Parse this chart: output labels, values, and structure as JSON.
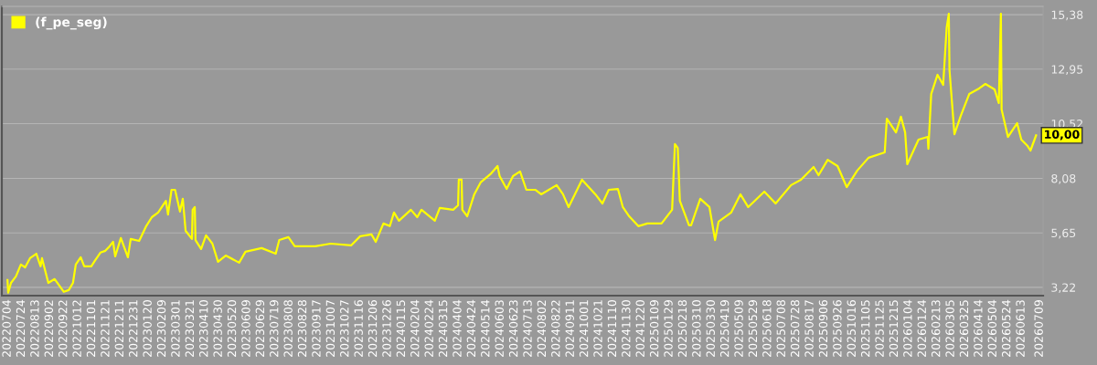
{
  "chart_data": {
    "type": "line",
    "x": [
      "2022-07-04",
      "2022-07-05",
      "2022-07-09",
      "2022-07-16",
      "2022-07-23",
      "2022-07-29",
      "2022-08-05",
      "2022-08-14",
      "2022-08-20",
      "2022-08-22",
      "2022-08-31",
      "2022-09-09",
      "2022-09-22",
      "2022-09-29",
      "2022-10-05",
      "2022-10-09",
      "2022-10-16",
      "2022-10-21",
      "2022-10-31",
      "2022-11-05",
      "2022-11-13",
      "2022-11-20",
      "2022-11-26",
      "2022-12-01",
      "2022-12-04",
      "2022-12-12",
      "2022-12-22",
      "2022-12-26",
      "2023-01-07",
      "2023-01-17",
      "2023-01-25",
      "2023-02-03",
      "2023-02-14",
      "2023-02-17",
      "2023-02-22",
      "2023-02-27",
      "2023-03-06",
      "2023-03-10",
      "2023-03-14",
      "2023-03-23",
      "2023-03-24",
      "2023-03-27",
      "2023-03-28",
      "2023-04-05",
      "2023-04-12",
      "2023-04-21",
      "2023-04-29",
      "2023-05-10",
      "2023-05-29",
      "2023-06-07",
      "2023-06-30",
      "2023-07-20",
      "2023-07-25",
      "2023-08-07",
      "2023-08-16",
      "2023-09-14",
      "2023-10-06",
      "2023-11-04",
      "2023-11-17",
      "2023-12-03",
      "2023-12-09",
      "2023-12-20",
      "2023-12-29",
      "2024-01-04",
      "2024-01-11",
      "2024-01-28",
      "2024-02-06",
      "2024-02-12",
      "2024-03-02",
      "2024-03-09",
      "2024-03-28",
      "2024-04-04",
      "2024-04-05",
      "2024-04-09",
      "2024-04-10",
      "2024-04-17",
      "2024-04-27",
      "2024-05-06",
      "2024-05-21",
      "2024-05-30",
      "2024-06-02",
      "2024-06-12",
      "2024-06-21",
      "2024-07-01",
      "2024-07-10",
      "2024-07-23",
      "2024-07-31",
      "2024-08-22",
      "2024-08-31",
      "2024-09-08",
      "2024-09-27",
      "2024-10-16",
      "2024-10-26",
      "2024-11-04",
      "2024-11-17",
      "2024-11-24",
      "2024-12-03",
      "2024-12-16",
      "2024-12-29",
      "2025-01-18",
      "2025-02-02",
      "2025-02-06",
      "2025-02-10",
      "2025-02-13",
      "2025-02-26",
      "2025-03-01",
      "2025-03-14",
      "2025-03-27",
      "2025-04-04",
      "2025-04-09",
      "2025-04-27",
      "2025-05-10",
      "2025-05-21",
      "2025-06-13",
      "2025-06-29",
      "2025-07-21",
      "2025-08-04",
      "2025-08-22",
      "2025-08-29",
      "2025-09-11",
      "2025-09-25",
      "2025-10-08",
      "2025-10-23",
      "2025-11-08",
      "2025-12-01",
      "2025-12-04",
      "2025-12-17",
      "2025-12-24",
      "2025-12-30",
      "2026-01-02",
      "2026-01-18",
      "2026-01-31",
      "2026-02-01",
      "2026-02-05",
      "2026-02-14",
      "2026-02-22",
      "2026-02-27",
      "2026-03-02",
      "2026-03-03",
      "2026-03-10",
      "2026-03-19",
      "2026-03-31",
      "2026-04-14",
      "2026-04-23",
      "2026-05-06",
      "2026-05-12",
      "2026-05-15",
      "2026-05-16",
      "2026-05-25",
      "2026-06-07",
      "2026-06-13",
      "2026-06-22",
      "2026-06-26",
      "2026-07-04"
    ],
    "series": [
      {
        "name": "(f_pe_seg)",
        "color": "#ffff00",
        "values": [
          3.55,
          2.98,
          3.42,
          3.71,
          4.24,
          4.11,
          4.52,
          4.72,
          4.16,
          4.52,
          3.42,
          3.59,
          3.02,
          3.1,
          3.42,
          4.24,
          4.56,
          4.16,
          4.16,
          4.4,
          4.77,
          4.85,
          5.05,
          5.25,
          4.6,
          5.42,
          4.56,
          5.38,
          5.29,
          5.95,
          6.35,
          6.56,
          7.08,
          6.47,
          7.57,
          7.57,
          6.6,
          7.17,
          5.74,
          5.38,
          6.68,
          6.8,
          5.33,
          4.93,
          5.54,
          5.17,
          4.36,
          4.64,
          4.32,
          4.81,
          4.97,
          4.72,
          5.33,
          5.46,
          5.05,
          5.05,
          5.17,
          5.09,
          5.5,
          5.58,
          5.25,
          6.07,
          5.95,
          6.56,
          6.19,
          6.68,
          6.35,
          6.68,
          6.19,
          6.76,
          6.68,
          6.88,
          8.02,
          8.02,
          6.68,
          6.39,
          7.37,
          7.9,
          8.3,
          8.63,
          8.18,
          7.61,
          8.18,
          8.39,
          7.57,
          7.57,
          7.37,
          7.78,
          7.37,
          6.8,
          8.02,
          7.37,
          6.96,
          7.57,
          7.61,
          6.8,
          6.39,
          5.95,
          6.07,
          6.07,
          6.68,
          9.61,
          9.44,
          7.08,
          5.99,
          5.99,
          7.17,
          6.8,
          5.33,
          6.15,
          6.56,
          7.37,
          6.8,
          7.49,
          6.96,
          7.78,
          8.02,
          8.59,
          8.22,
          8.91,
          8.63,
          7.69,
          8.43,
          9.0,
          9.24,
          10.74,
          10.13,
          10.83,
          10.13,
          8.71,
          9.81,
          9.93,
          9.4,
          11.84,
          12.7,
          12.25,
          14.81,
          15.42,
          12.9,
          10.05,
          10.87,
          11.84,
          12.09,
          12.29,
          12.05,
          11.44,
          15.42,
          11.15,
          9.93,
          10.54,
          9.81,
          9.52,
          9.32,
          10.0
        ]
      }
    ],
    "xlim": [
      "2022-06-26",
      "2026-07-14"
    ],
    "xticks": [
      {
        "value": "2022-07-04",
        "label": "20220704"
      },
      {
        "value": "2022-07-24",
        "label": "20220724"
      },
      {
        "value": "2022-08-13",
        "label": "20220813"
      },
      {
        "value": "2022-09-02",
        "label": "20220902"
      },
      {
        "value": "2022-09-22",
        "label": "20220922"
      },
      {
        "value": "2022-10-12",
        "label": "20221012"
      },
      {
        "value": "2022-11-01",
        "label": "20221101"
      },
      {
        "value": "2022-11-21",
        "label": "20221121"
      },
      {
        "value": "2022-12-11",
        "label": "20221211"
      },
      {
        "value": "2022-12-31",
        "label": "20221231"
      },
      {
        "value": "2023-01-20",
        "label": "20230120"
      },
      {
        "value": "2023-02-09",
        "label": "20230209"
      },
      {
        "value": "2023-03-01",
        "label": "20230301"
      },
      {
        "value": "2023-03-21",
        "label": "20230321"
      },
      {
        "value": "2023-04-10",
        "label": "20230410"
      },
      {
        "value": "2023-04-30",
        "label": "20230430"
      },
      {
        "value": "2023-05-20",
        "label": "20230520"
      },
      {
        "value": "2023-06-09",
        "label": "20230609"
      },
      {
        "value": "2023-06-29",
        "label": "20230629"
      },
      {
        "value": "2023-07-19",
        "label": "20230719"
      },
      {
        "value": "2023-08-08",
        "label": "20230808"
      },
      {
        "value": "2023-08-28",
        "label": "20230828"
      },
      {
        "value": "2023-09-17",
        "label": "20230917"
      },
      {
        "value": "2023-10-07",
        "label": "20231007"
      },
      {
        "value": "2023-10-27",
        "label": "20231027"
      },
      {
        "value": "2023-11-16",
        "label": "20231116"
      },
      {
        "value": "2023-12-06",
        "label": "20231206"
      },
      {
        "value": "2023-12-26",
        "label": "20231226"
      },
      {
        "value": "2024-01-15",
        "label": "20240115"
      },
      {
        "value": "2024-02-04",
        "label": "20240204"
      },
      {
        "value": "2024-02-24",
        "label": "20240224"
      },
      {
        "value": "2024-03-15",
        "label": "20240315"
      },
      {
        "value": "2024-04-04",
        "label": "20240404"
      },
      {
        "value": "2024-04-24",
        "label": "20240424"
      },
      {
        "value": "2024-05-14",
        "label": "20240514"
      },
      {
        "value": "2024-06-03",
        "label": "20240603"
      },
      {
        "value": "2024-06-23",
        "label": "20240623"
      },
      {
        "value": "2024-07-13",
        "label": "20240713"
      },
      {
        "value": "2024-08-02",
        "label": "20240802"
      },
      {
        "value": "2024-08-22",
        "label": "20240822"
      },
      {
        "value": "2024-09-11",
        "label": "20240911"
      },
      {
        "value": "2024-10-01",
        "label": "20241001"
      },
      {
        "value": "2024-10-21",
        "label": "20241021"
      },
      {
        "value": "2024-11-10",
        "label": "20241110"
      },
      {
        "value": "2024-11-30",
        "label": "20241130"
      },
      {
        "value": "2024-12-20",
        "label": "20241220"
      },
      {
        "value": "2025-01-09",
        "label": "20250109"
      },
      {
        "value": "2025-01-29",
        "label": "20250129"
      },
      {
        "value": "2025-02-18",
        "label": "20250218"
      },
      {
        "value": "2025-03-10",
        "label": "20250310"
      },
      {
        "value": "2025-03-30",
        "label": "20250330"
      },
      {
        "value": "2025-04-19",
        "label": "20250419"
      },
      {
        "value": "2025-05-09",
        "label": "20250509"
      },
      {
        "value": "2025-05-29",
        "label": "20250529"
      },
      {
        "value": "2025-06-18",
        "label": "20250618"
      },
      {
        "value": "2025-07-08",
        "label": "20250708"
      },
      {
        "value": "2025-07-28",
        "label": "20250728"
      },
      {
        "value": "2025-08-17",
        "label": "20250817"
      },
      {
        "value": "2025-09-06",
        "label": "20250906"
      },
      {
        "value": "2025-09-26",
        "label": "20250926"
      },
      {
        "value": "2025-10-16",
        "label": "20251016"
      },
      {
        "value": "2025-11-05",
        "label": "20251105"
      },
      {
        "value": "2025-11-25",
        "label": "20251125"
      },
      {
        "value": "2025-12-15",
        "label": "20251215"
      },
      {
        "value": "2026-01-04",
        "label": "20260104"
      },
      {
        "value": "2026-01-24",
        "label": "20260124"
      },
      {
        "value": "2026-02-13",
        "label": "20260213"
      },
      {
        "value": "2026-03-05",
        "label": "20260305"
      },
      {
        "value": "2026-03-25",
        "label": "20260325"
      },
      {
        "value": "2026-04-14",
        "label": "20260414"
      },
      {
        "value": "2026-05-04",
        "label": "20260504"
      },
      {
        "value": "2026-05-24",
        "label": "20260524"
      },
      {
        "value": "2026-06-13",
        "label": "20260613"
      },
      {
        "value": "2026-07-09",
        "label": "20260709"
      }
    ],
    "ylim": [
      2.85,
      15.75
    ],
    "yticks": [
      {
        "value": 3.22,
        "label": "3,22"
      },
      {
        "value": 5.65,
        "label": "5,65"
      },
      {
        "value": 8.08,
        "label": "8,08"
      },
      {
        "value": 10.52,
        "label": "10,52"
      },
      {
        "value": 12.95,
        "label": "12,95"
      },
      {
        "value": 15.38,
        "label": "15,38"
      }
    ],
    "annotations": [
      {
        "text": "10,00",
        "x": "2026-07-04",
        "y": 10.0
      }
    ],
    "grid": "y",
    "legend": "top left",
    "line_style": "solid",
    "marker": "none"
  }
}
